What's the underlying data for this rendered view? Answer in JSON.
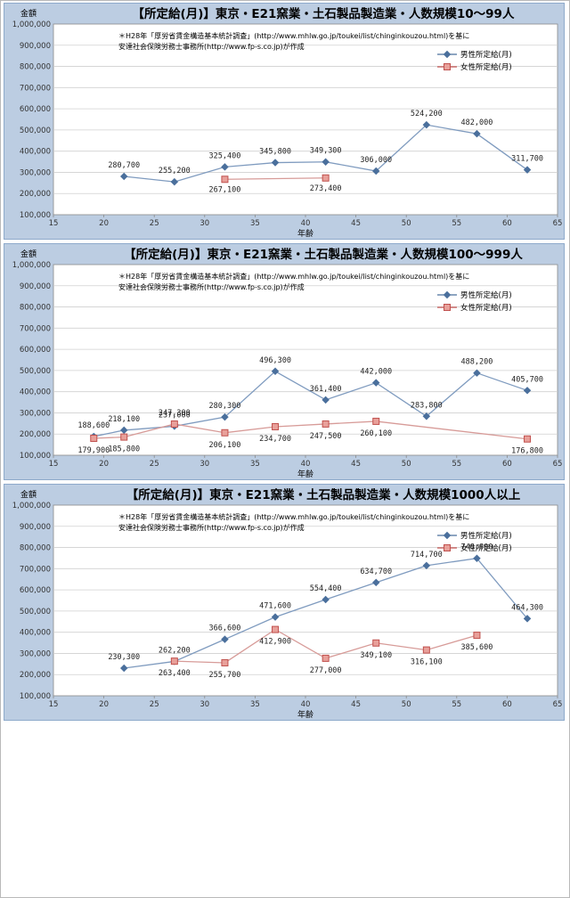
{
  "chart_data": [
    {
      "type": "line",
      "title": "【所定給(月)】東京・E21窯業・土石製品製造業・人数規模10～99人",
      "ylabel": "金額",
      "xlabel": "年齢",
      "note_lines": [
        "＊H28年「厚労省賃金構造基本統計調査」(http://www.mhlw.go.jp/toukei/list/chinginkouzou.html)を基に",
        "安達社会保険労務士事務所(http://www.fp-s.co.jp)が作成"
      ],
      "xlim": [
        15,
        65
      ],
      "ylim": [
        100000,
        1000000
      ],
      "x_ticks": [
        "15",
        "20",
        "25",
        "30",
        "35",
        "40",
        "45",
        "50",
        "55",
        "60",
        "65"
      ],
      "y_ticks": [
        "100,000",
        "200,000",
        "300,000",
        "400,000",
        "500,000",
        "600,000",
        "700,000",
        "800,000",
        "900,000",
        "1,000,000"
      ],
      "legend_position": "top-right",
      "series": [
        {
          "name": "男性所定給(月)",
          "color": "#4a6f9c",
          "marker": "diamond",
          "points": [
            [
              22,
              280700
            ],
            [
              27,
              255200
            ],
            [
              32,
              325400
            ],
            [
              37,
              345800
            ],
            [
              42,
              349300
            ],
            [
              47,
              306000
            ],
            [
              52,
              524200
            ],
            [
              57,
              482000
            ],
            [
              62,
              311700
            ]
          ],
          "labels": [
            "280,700",
            "255,200",
            "325,400",
            "345,800",
            "349,300",
            "306,000",
            "524,200",
            "482,000",
            "311,700"
          ]
        },
        {
          "name": "女性所定給(月)",
          "color": "#c0504d",
          "marker": "square",
          "points": [
            [
              32,
              267100
            ],
            [
              42,
              273400
            ]
          ],
          "labels": [
            "267,100",
            "273,400"
          ]
        }
      ]
    },
    {
      "type": "line",
      "title": "【所定給(月)】東京・E21窯業・土石製品製造業・人数規模100～999人",
      "ylabel": "金額",
      "xlabel": "年齢",
      "note_lines": [
        "＊H28年「厚労省賃金構造基本統計調査」(http://www.mhlw.go.jp/toukei/list/chinginkouzou.html)を基に",
        "安達社会保険労務士事務所(http://www.fp-s.co.jp)が作成"
      ],
      "xlim": [
        15,
        65
      ],
      "ylim": [
        100000,
        1000000
      ],
      "x_ticks": [
        "15",
        "20",
        "25",
        "30",
        "35",
        "40",
        "45",
        "50",
        "55",
        "60",
        "65"
      ],
      "y_ticks": [
        "100,000",
        "200,000",
        "300,000",
        "400,000",
        "500,000",
        "600,000",
        "700,000",
        "800,000",
        "900,000",
        "1,000,000"
      ],
      "legend_position": "top-right",
      "series": [
        {
          "name": "男性所定給(月)",
          "color": "#4a6f9c",
          "marker": "diamond",
          "points": [
            [
              19,
              188600
            ],
            [
              22,
              218100
            ],
            [
              27,
              237000
            ],
            [
              32,
              280300
            ],
            [
              37,
              496300
            ],
            [
              42,
              361400
            ],
            [
              47,
              442000
            ],
            [
              52,
              283800
            ],
            [
              57,
              488200
            ],
            [
              62,
              405700
            ]
          ],
          "labels": [
            "188,600",
            "218,100",
            "237,000",
            "280,300",
            "496,300",
            "361,400",
            "442,000",
            "283,800",
            "488,200",
            "405,700"
          ]
        },
        {
          "name": "女性所定給(月)",
          "color": "#c0504d",
          "marker": "square",
          "points": [
            [
              19,
              179900
            ],
            [
              22,
              185800
            ],
            [
              27,
              247300
            ],
            [
              32,
              206100
            ],
            [
              37,
              234700
            ],
            [
              42,
              247500
            ],
            [
              47,
              260100
            ],
            [
              62,
              176800
            ]
          ],
          "labels": [
            "179,900",
            "185,800",
            "247,300",
            "206,100",
            "234,700",
            "247,500",
            "260,100",
            "176,800"
          ]
        }
      ]
    },
    {
      "type": "line",
      "title": "【所定給(月)】東京・E21窯業・土石製品製造業・人数規模1000人以上",
      "ylabel": "金額",
      "xlabel": "年齢",
      "note_lines": [
        "＊H28年「厚労省賃金構造基本統計調査」(http://www.mhlw.go.jp/toukei/list/chinginkouzou.html)を基に",
        "安達社会保険労務士事務所(http://www.fp-s.co.jp)が作成"
      ],
      "xlim": [
        15,
        65
      ],
      "ylim": [
        100000,
        1000000
      ],
      "x_ticks": [
        "15",
        "20",
        "25",
        "30",
        "35",
        "40",
        "45",
        "50",
        "55",
        "60",
        "65"
      ],
      "y_ticks": [
        "100,000",
        "200,000",
        "300,000",
        "400,000",
        "500,000",
        "600,000",
        "700,000",
        "800,000",
        "900,000",
        "1,000,000"
      ],
      "legend_position": "top-right",
      "series": [
        {
          "name": "男性所定給(月)",
          "color": "#4a6f9c",
          "marker": "diamond",
          "points": [
            [
              22,
              230300
            ],
            [
              27,
              262200
            ],
            [
              32,
              366600
            ],
            [
              37,
              471600
            ],
            [
              42,
              554400
            ],
            [
              47,
              634700
            ],
            [
              52,
              714700
            ],
            [
              57,
              748800
            ],
            [
              62,
              464300
            ]
          ],
          "labels": [
            "230,300",
            "262,200",
            "366,600",
            "471,600",
            "554,400",
            "634,700",
            "714,700",
            "748,800",
            "464,300"
          ]
        },
        {
          "name": "女性所定給(月)",
          "color": "#c0504d",
          "marker": "square",
          "points": [
            [
              27,
              263400
            ],
            [
              32,
              255700
            ],
            [
              37,
              412900
            ],
            [
              42,
              277000
            ],
            [
              47,
              349100
            ],
            [
              52,
              316100
            ],
            [
              57,
              385600
            ]
          ],
          "labels": [
            "263,400",
            "255,700",
            "412,900",
            "277,000",
            "349,100",
            "316,100",
            "385,600"
          ]
        }
      ]
    }
  ]
}
